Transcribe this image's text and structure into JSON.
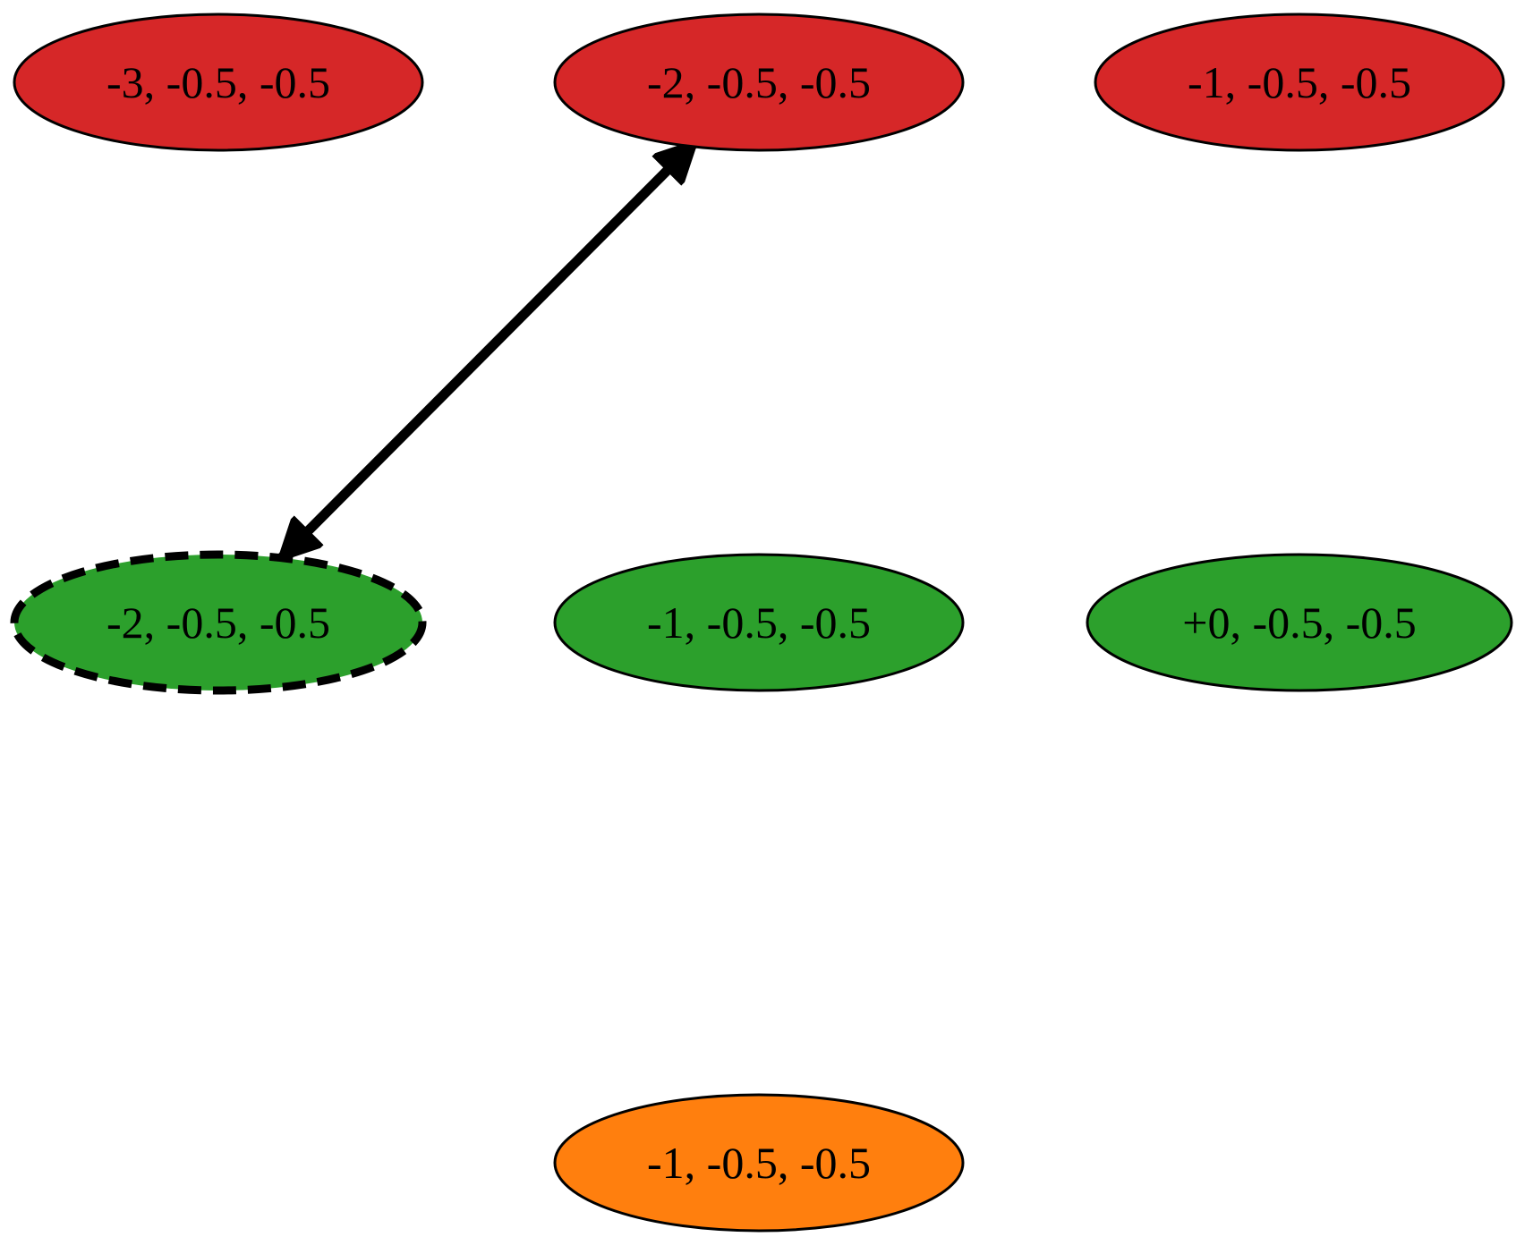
{
  "colors": {
    "red": "#d62728",
    "green": "#2ca02c",
    "orange": "#ff7f0e",
    "stroke": "#000000"
  },
  "nodes": [
    {
      "id": "r1",
      "label": "-3, -0.5, -0.5",
      "color": "red"
    },
    {
      "id": "r2",
      "label": "-2, -0.5, -0.5",
      "color": "red"
    },
    {
      "id": "r3",
      "label": "-1, -0.5, -0.5",
      "color": "red"
    },
    {
      "id": "g1",
      "label": "-2, -0.5, -0.5",
      "color": "green",
      "style": "dashed"
    },
    {
      "id": "g2",
      "label": "-1, -0.5, -0.5",
      "color": "green"
    },
    {
      "id": "g3",
      "label": "+0, -0.5, -0.5",
      "color": "green"
    },
    {
      "id": "o1",
      "label": "-1, -0.5, -0.5",
      "color": "orange"
    }
  ],
  "edges": [
    {
      "from": "r2",
      "to": "g1",
      "direction": "both"
    }
  ]
}
